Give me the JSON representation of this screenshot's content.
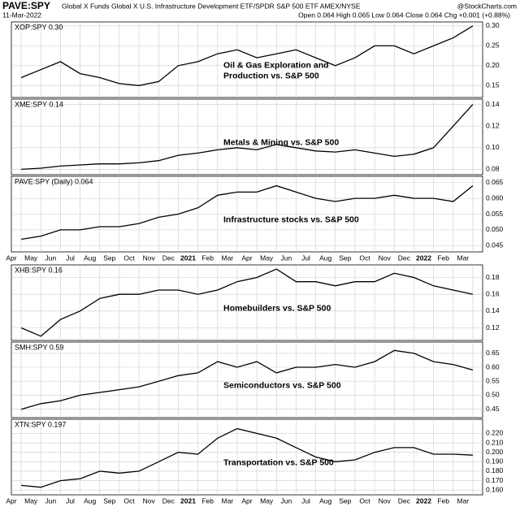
{
  "header": {
    "symbol": "PAVE:SPY",
    "description": "Global X Funds Global X U.S. Infrastructure Development ETF/SPDR S&P 500 ETF AMEX/NYSE",
    "credit": "@StockCharts.com",
    "date": "11-Mar-2022",
    "quote": "Open 0.064 High 0.065 Low 0.064 Close 0.064 Chg +0.001 (+0.88%)"
  },
  "categories": [
    "Apr",
    "May",
    "Jun",
    "Jul",
    "Aug",
    "Sep",
    "Oct",
    "Nov",
    "Dec",
    "2021",
    "Feb",
    "Mar",
    "Apr",
    "May",
    "Jun",
    "Jul",
    "Aug",
    "Sep",
    "Oct",
    "Nov",
    "Dec",
    "2022",
    "Feb",
    "Mar"
  ],
  "chart_data": [
    {
      "type": "line",
      "title": "XOP:SPY 0.30",
      "annotation": [
        "Oil & Gas Exploration and",
        "Production vs. S&P 500"
      ],
      "x_labels": false,
      "color": "#000000",
      "ylim": [
        0.12,
        0.31
      ],
      "yticks": [
        0.15,
        {
          "value": 0.2,
          "label": "0.20"
        },
        0.25,
        {
          "value": 0.3,
          "label": "0.30"
        }
      ],
      "values": [
        0.17,
        0.19,
        0.21,
        0.18,
        0.17,
        0.155,
        0.15,
        0.16,
        0.2,
        0.21,
        0.23,
        0.24,
        0.22,
        0.23,
        0.24,
        0.22,
        0.2,
        0.22,
        0.25,
        0.25,
        0.23,
        0.25,
        0.27,
        0.3
      ]
    },
    {
      "type": "line",
      "title": "XME:SPY 0.14",
      "annotation": [
        "Metals & Mining vs. S&P 500"
      ],
      "x_labels": false,
      "color": "#000000",
      "ylim": [
        0.075,
        0.145
      ],
      "yticks": [
        0.08,
        {
          "value": 0.1,
          "label": "0.10"
        },
        0.12,
        0.14
      ],
      "values": [
        0.08,
        0.081,
        0.083,
        0.084,
        0.085,
        0.085,
        0.086,
        0.088,
        0.093,
        0.095,
        0.098,
        0.1,
        0.098,
        0.103,
        0.1,
        0.097,
        0.096,
        0.098,
        0.095,
        0.092,
        0.094,
        0.1,
        0.12,
        0.14
      ]
    },
    {
      "type": "line",
      "title": "PAVE:SPY (Daily) 0.064",
      "annotation": [
        "Infrastructure stocks vs. S&P 500"
      ],
      "x_labels": true,
      "color": "#000000",
      "ylim": [
        0.043,
        0.067
      ],
      "yticks": [
        0.045,
        {
          "value": 0.05,
          "label": "0.050"
        },
        0.055,
        {
          "value": 0.06,
          "label": "0.060"
        },
        0.065
      ],
      "values": [
        0.047,
        0.048,
        0.05,
        0.05,
        0.051,
        0.051,
        0.052,
        0.054,
        0.055,
        0.057,
        0.061,
        0.062,
        0.062,
        0.064,
        0.062,
        0.06,
        0.059,
        0.06,
        0.06,
        0.061,
        0.06,
        0.06,
        0.059,
        0.064
      ]
    },
    {
      "type": "line",
      "title": "XHB:SPY 0.16",
      "annotation": [
        "Homebuilders vs. S&P 500"
      ],
      "x_labels": false,
      "color": "#000000",
      "ylim": [
        0.105,
        0.195
      ],
      "yticks": [
        0.12,
        0.14,
        0.16,
        0.18
      ],
      "values": [
        0.12,
        0.11,
        0.13,
        0.14,
        0.155,
        0.16,
        0.16,
        0.165,
        0.165,
        0.16,
        0.165,
        0.175,
        0.18,
        0.19,
        0.175,
        0.175,
        0.17,
        0.175,
        0.175,
        0.185,
        0.18,
        0.17,
        0.165,
        0.16
      ]
    },
    {
      "type": "line",
      "title": "SMH:SPY 0.59",
      "annotation": [
        "Semiconductors vs. S&P 500"
      ],
      "x_labels": false,
      "color": "#000000",
      "ylim": [
        0.42,
        0.69
      ],
      "yticks": [
        0.45,
        {
          "value": 0.5,
          "label": "0.50"
        },
        0.55,
        {
          "value": 0.6,
          "label": "0.60"
        },
        0.65
      ],
      "values": [
        0.45,
        0.47,
        0.48,
        0.5,
        0.51,
        0.52,
        0.53,
        0.55,
        0.57,
        0.58,
        0.62,
        0.6,
        0.62,
        0.58,
        0.6,
        0.6,
        0.61,
        0.6,
        0.62,
        0.66,
        0.65,
        0.62,
        0.61,
        0.59
      ]
    },
    {
      "type": "line",
      "title": "XTN:SPY 0.197",
      "annotation": [
        "Transportation vs. S&P 500"
      ],
      "x_labels": true,
      "color": "#000000",
      "ylim": [
        0.155,
        0.235
      ],
      "yticks": [
        {
          "value": 0.16,
          "label": "0.160"
        },
        {
          "value": 0.17,
          "label": "0.170"
        },
        {
          "value": 0.18,
          "label": "0.180"
        },
        {
          "value": 0.19,
          "label": "0.190"
        },
        {
          "value": 0.2,
          "label": "0.200"
        },
        {
          "value": 0.21,
          "label": "0.210"
        },
        {
          "value": 0.22,
          "label": "0.220"
        }
      ],
      "values": [
        0.165,
        0.163,
        0.17,
        0.172,
        0.18,
        0.178,
        0.18,
        0.19,
        0.2,
        0.198,
        0.215,
        0.225,
        0.22,
        0.215,
        0.205,
        0.195,
        0.19,
        0.192,
        0.2,
        0.205,
        0.205,
        0.198,
        0.198,
        0.197
      ]
    }
  ]
}
